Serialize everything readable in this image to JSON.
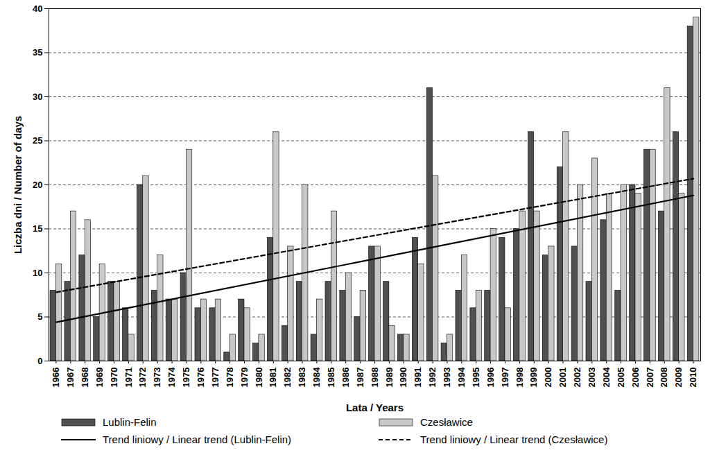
{
  "chart_data": {
    "type": "bar",
    "x_label": "Lata / Years",
    "y_label": "Liczba dni / Number of days",
    "categories": [
      "1966",
      "1967",
      "1968",
      "1969",
      "1970",
      "1971",
      "1972",
      "1973",
      "1974",
      "1975",
      "1976",
      "1977",
      "1978",
      "1979",
      "1980",
      "1981",
      "1982",
      "1983",
      "1984",
      "1985",
      "1986",
      "1987",
      "1988",
      "1989",
      "1990",
      "1991",
      "1992",
      "1993",
      "1994",
      "1995",
      "1996",
      "1997",
      "1998",
      "1999",
      "2000",
      "2001",
      "2002",
      "2003",
      "2004",
      "2005",
      "2006",
      "2007",
      "2008",
      "2009",
      "2010"
    ],
    "series": [
      {
        "name": "Lublin-Felin",
        "type": "bar",
        "color": "#505050",
        "values": [
          8,
          9,
          12,
          5,
          9,
          6,
          20,
          8,
          7,
          10,
          6,
          6,
          1,
          7,
          2,
          14,
          4,
          9,
          3,
          9,
          8,
          5,
          13,
          9,
          3,
          14,
          31,
          2,
          8,
          6,
          8,
          14,
          15,
          26,
          12,
          22,
          13,
          9,
          16,
          8,
          20,
          24,
          17,
          26,
          38
        ]
      },
      {
        "name": "Czesławice",
        "type": "bar",
        "color": "#c8c8c8",
        "values": [
          11,
          17,
          16,
          11,
          9,
          3,
          21,
          12,
          7,
          24,
          7,
          7,
          3,
          6,
          3,
          26,
          13,
          20,
          7,
          17,
          10,
          8,
          13,
          4,
          3,
          11,
          21,
          3,
          12,
          8,
          15,
          6,
          17,
          17,
          13,
          26,
          20,
          23,
          19,
          20,
          19,
          24,
          31,
          19,
          39
        ]
      },
      {
        "name": "Trend liniowy / Linear trend (Lublin-Felin)",
        "type": "line",
        "color": "#000000",
        "line_style": "solid",
        "x": [
          "1966",
          "2010"
        ],
        "values": [
          4.4,
          18.8
        ]
      },
      {
        "name": "Trend liniowy / Linear trend (Czesławice)",
        "type": "line",
        "color": "#000000",
        "line_style": "dashed",
        "x": [
          "1966",
          "2010"
        ],
        "values": [
          7.8,
          20.7
        ]
      }
    ],
    "ylim": [
      0,
      40
    ],
    "yticks": [
      0,
      5,
      10,
      15,
      20,
      25,
      30,
      35,
      40
    ],
    "grid": true,
    "legend": "bottom"
  }
}
